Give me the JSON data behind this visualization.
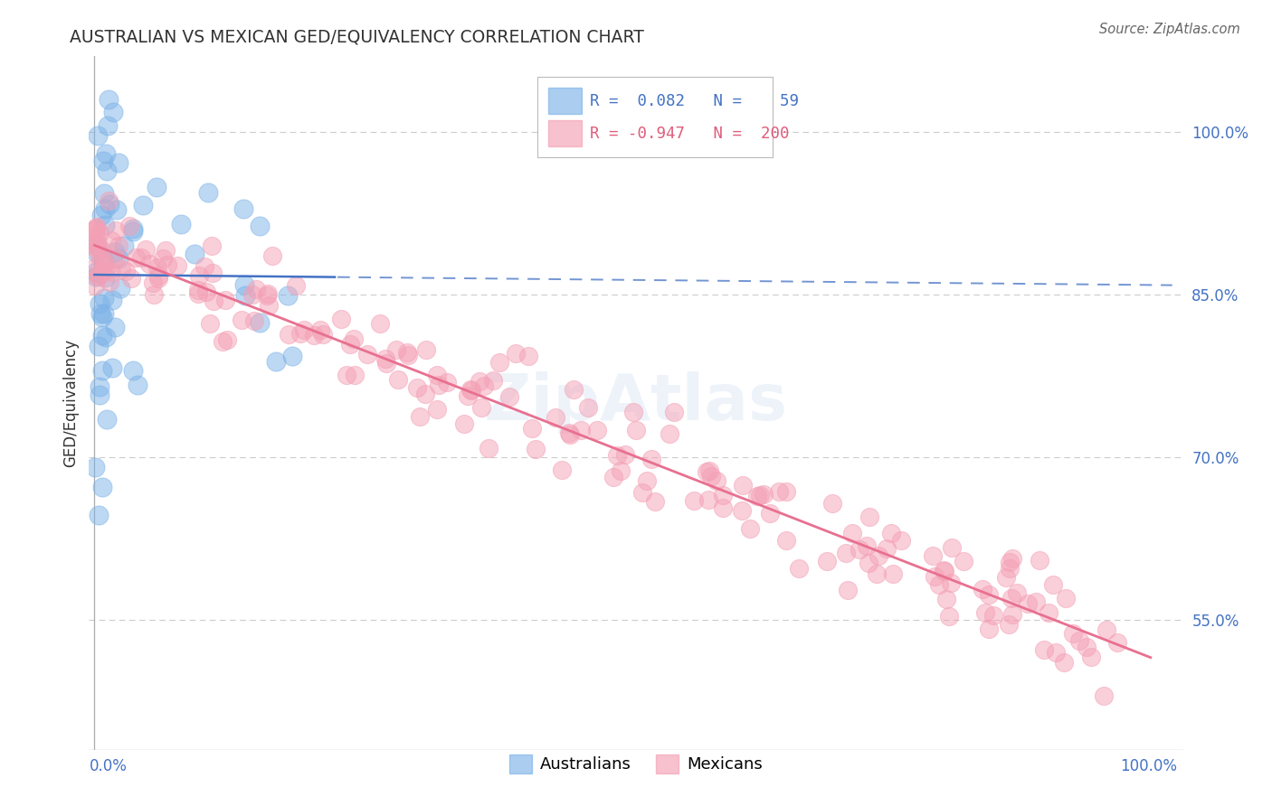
{
  "title": "AUSTRALIAN VS MEXICAN GED/EQUIVALENCY CORRELATION CHART",
  "source": "Source: ZipAtlas.com",
  "ylabel": "GED/Equivalency",
  "australian_color": "#7db3e8",
  "mexican_color": "#f4a0b5",
  "australian_line_color": "#4472c4",
  "mexican_line_color": "#e87090",
  "background_color": "#ffffff",
  "watermark": "ZipAtlas",
  "r_aus": 0.082,
  "n_aus": 59,
  "r_mex": -0.947,
  "n_mex": 200,
  "seed": 7
}
